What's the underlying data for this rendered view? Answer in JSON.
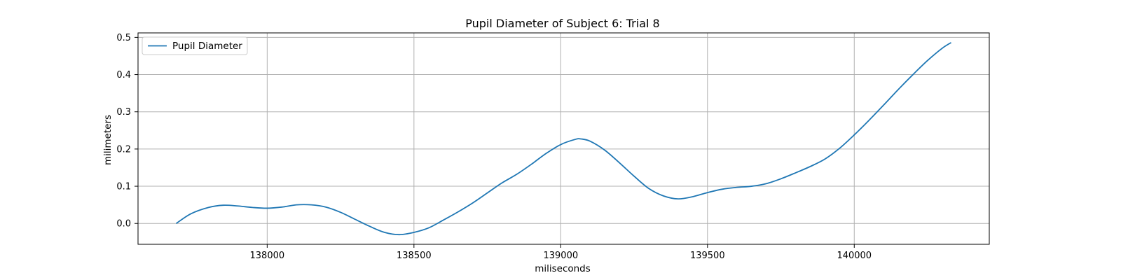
{
  "chart_data": {
    "type": "line",
    "title": "Pupil Diameter of Subject 6: Trial 8",
    "xlabel": "miliseconds",
    "ylabel": "milimeters",
    "xlim": [
      137560,
      140460
    ],
    "ylim": [
      -0.056,
      0.512
    ],
    "xticks": [
      138000,
      138500,
      139000,
      139500,
      140000
    ],
    "xtick_labels": [
      "138000",
      "138500",
      "139000",
      "139500",
      "140000"
    ],
    "yticks": [
      0.0,
      0.1,
      0.2,
      0.3,
      0.4,
      0.5
    ],
    "ytick_labels": [
      "0.0",
      "0.1",
      "0.2",
      "0.3",
      "0.4",
      "0.5"
    ],
    "grid": true,
    "legend_position": "top-left",
    "series": [
      {
        "name": "Pupil Diameter",
        "color": "#1f77b4",
        "x": [
          137690,
          137740,
          137800,
          137850,
          137900,
          137950,
          138000,
          138050,
          138100,
          138150,
          138200,
          138250,
          138300,
          138350,
          138400,
          138450,
          138500,
          138550,
          138600,
          138650,
          138700,
          138750,
          138800,
          138850,
          138900,
          138950,
          139000,
          139050,
          139070,
          139100,
          139150,
          139200,
          139250,
          139300,
          139350,
          139400,
          139450,
          139500,
          139550,
          139600,
          139650,
          139700,
          139750,
          139800,
          139850,
          139900,
          139950,
          140000,
          140050,
          140100,
          140150,
          140200,
          140250,
          140300,
          140330
        ],
        "values": [
          0.0,
          0.026,
          0.043,
          0.049,
          0.047,
          0.043,
          0.041,
          0.044,
          0.05,
          0.05,
          0.044,
          0.03,
          0.011,
          -0.008,
          -0.024,
          -0.03,
          -0.024,
          -0.012,
          0.009,
          0.031,
          0.055,
          0.082,
          0.109,
          0.132,
          0.159,
          0.188,
          0.212,
          0.226,
          0.227,
          0.221,
          0.197,
          0.163,
          0.127,
          0.094,
          0.074,
          0.066,
          0.072,
          0.083,
          0.092,
          0.097,
          0.1,
          0.107,
          0.12,
          0.136,
          0.153,
          0.173,
          0.202,
          0.238,
          0.277,
          0.318,
          0.36,
          0.4,
          0.438,
          0.471,
          0.486
        ]
      }
    ]
  }
}
